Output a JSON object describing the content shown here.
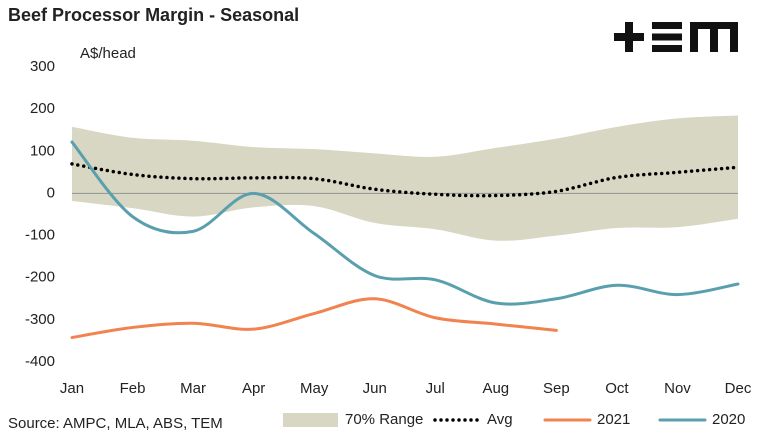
{
  "chart_data": {
    "type": "line",
    "title": "Beef Processor Margin - Seasonal",
    "y_label": "A$/head",
    "source": "Source: AMPC, MLA, ABS, TEM",
    "categories": [
      "Jan",
      "Feb",
      "Mar",
      "Apr",
      "May",
      "Jun",
      "Jul",
      "Aug",
      "Sep",
      "Oct",
      "Nov",
      "Dec"
    ],
    "range": {
      "name": "70% Range",
      "color": "#d7d7c3",
      "upper": [
        158,
        132,
        125,
        110,
        105,
        95,
        87,
        108,
        130,
        158,
        178,
        185
      ],
      "lower": [
        -18,
        -35,
        -55,
        -33,
        -30,
        -70,
        -85,
        -112,
        -100,
        -82,
        -80,
        -60
      ]
    },
    "series": [
      {
        "name": "Avg",
        "color": "#000000",
        "dash": "dotted",
        "values": [
          70,
          45,
          35,
          37,
          35,
          10,
          -2,
          -5,
          5,
          38,
          50,
          62
        ]
      },
      {
        "name": "2021",
        "color": "#f0834f",
        "values": [
          -342,
          -318,
          -308,
          -322,
          -285,
          -250,
          -295,
          -310,
          -325,
          null,
          null,
          null
        ]
      },
      {
        "name": "2020",
        "color": "#5a9fae",
        "values": [
          122,
          -55,
          -90,
          0,
          -95,
          -195,
          -205,
          -260,
          -250,
          -218,
          -240,
          -215
        ]
      }
    ],
    "ylim": [
      -400,
      300
    ],
    "yticks": [
      -400,
      -300,
      -200,
      -100,
      0,
      100,
      200,
      300
    ],
    "zero_line": true,
    "legend": "bottom"
  }
}
